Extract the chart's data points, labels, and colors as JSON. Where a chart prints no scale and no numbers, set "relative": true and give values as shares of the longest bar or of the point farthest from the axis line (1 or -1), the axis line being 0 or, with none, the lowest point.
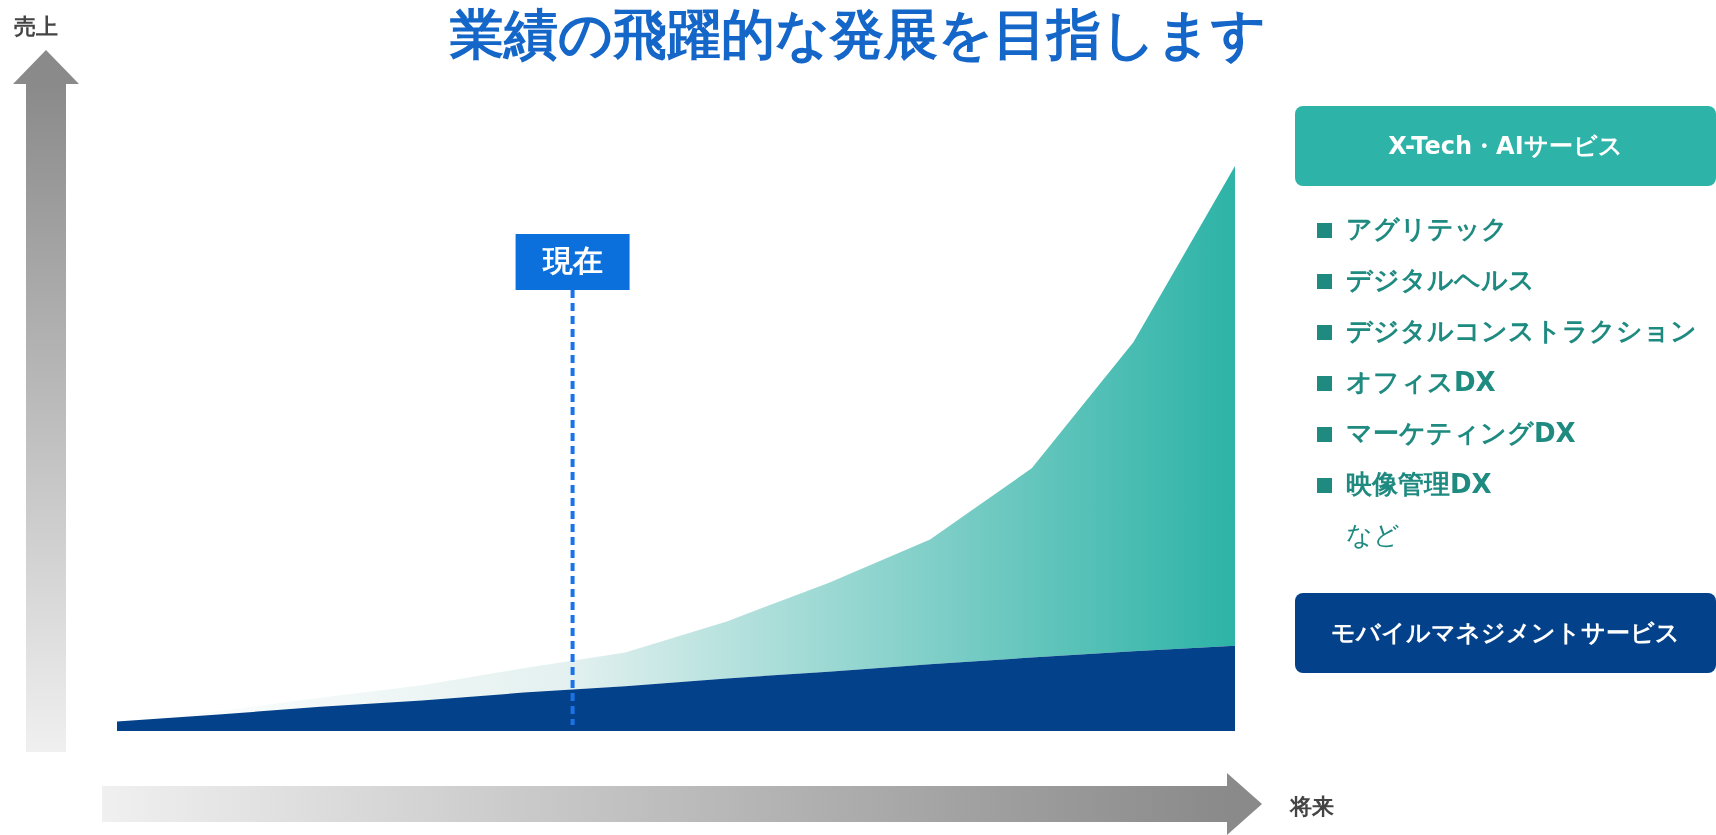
{
  "chart_data": {
    "type": "area",
    "title": "業績の飛躍的な発展を目指します",
    "xlabel": "将来",
    "relative": true,
    "stacked": true,
    "categories": [
      null,
      null,
      null,
      null,
      null,
      null,
      null,
      null,
      null,
      null,
      null,
      null
    ],
    "legend": "right",
    "series": [
      {
        "name": "モバイルマネジメントサービス",
        "color": "#03418a",
        "values": [
          0.017,
          0.029,
          0.043,
          0.054,
          0.068,
          0.079,
          0.093,
          0.105,
          0.118,
          0.13,
          0.141,
          0.151
        ]
      },
      {
        "name": "X-Tech・AIサービス",
        "color": "#2db3a7",
        "values": [
          0,
          0.006,
          0.016,
          0.027,
          0.043,
          0.06,
          0.101,
          0.157,
          0.221,
          0.335,
          0.547,
          0.849
        ]
      }
    ],
    "annotations": [
      "売上",
      {
        "text": "現在"
      },
      "アグリテック",
      "デジタルヘルス",
      "デジタルコンストラクション",
      "オフィスDX",
      "マーケティングDX",
      "映像管理DX",
      "など"
    ]
  }
}
